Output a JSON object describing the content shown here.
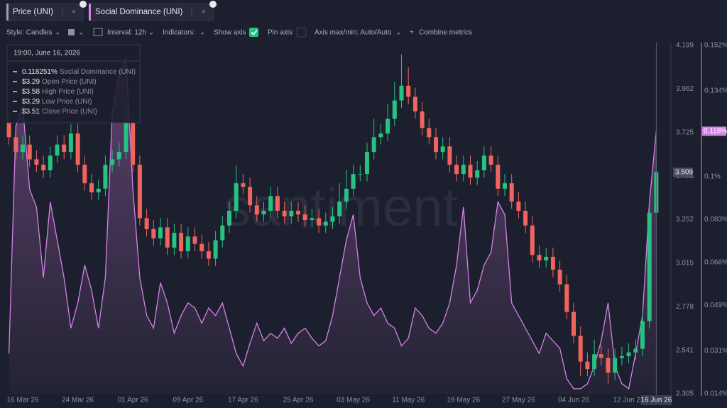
{
  "tabs": [
    {
      "label": "Price (UNI)",
      "color": "#9aa0b0"
    },
    {
      "label": "Social Dominance (UNI)",
      "color": "#d681e6"
    }
  ],
  "toolbar": {
    "style": "Style: Candles",
    "interval": "Interval: 12h",
    "indicators": "Indicators:",
    "show_axis": "Show axis",
    "pin_axis": "Pin axis",
    "axis_minmax": "Axis max/min: Auto/Auto",
    "combine": "Combine metrics"
  },
  "tooltip": {
    "time": "19:00, June 16, 2026",
    "rows": [
      {
        "value": "0.118251%",
        "label": "Social Dominance (UNI)",
        "color": "#d681e6"
      },
      {
        "value": "$3.29",
        "label": "Open Price (UNI)",
        "color": "#9aa0b0"
      },
      {
        "value": "$3.58",
        "label": "High Price (UNI)",
        "color": "#9aa0b0"
      },
      {
        "value": "$3.29",
        "label": "Low Price (UNI)",
        "color": "#9aa0b0"
      },
      {
        "value": "$3.51",
        "label": "Close Price (UNI)",
        "color": "#9aa0b0"
      }
    ]
  },
  "watermark": "santiment",
  "chart_data": {
    "type": "candlestick",
    "grid": false,
    "categories": [
      null,
      null,
      "16 Mar 26",
      null,
      null,
      null,
      null,
      null,
      null,
      null,
      "24 Mar 26",
      null,
      null,
      null,
      null,
      null,
      null,
      null,
      "01 Apr 26",
      null,
      null,
      null,
      null,
      null,
      null,
      null,
      "09 Apr 26",
      null,
      null,
      null,
      null,
      null,
      null,
      null,
      "17 Apr 26",
      null,
      null,
      null,
      null,
      null,
      null,
      null,
      "25 Apr 26",
      null,
      null,
      null,
      null,
      null,
      null,
      null,
      "03 May 26",
      null,
      null,
      null,
      null,
      null,
      null,
      null,
      "11 May 26",
      null,
      null,
      null,
      null,
      null,
      null,
      null,
      "19 May 26",
      null,
      null,
      null,
      null,
      null,
      null,
      null,
      "27 May 26",
      null,
      null,
      null,
      null,
      null,
      null,
      null,
      "04 Jun 26",
      null,
      null,
      null,
      null,
      null,
      null,
      null,
      "12 Jun 26",
      null,
      null,
      null,
      "16 Jun 26"
    ],
    "ylim": [
      2.305,
      4.199
    ],
    "yticks": [
      2.305,
      2.541,
      2.778,
      3.015,
      3.252,
      3.488,
      3.725,
      3.962,
      4.199
    ],
    "y2lim": [
      0.014,
      0.152
    ],
    "y2ticks": [
      {
        "value": 0.014,
        "label": "0.014%"
      },
      {
        "value": 0.031,
        "label": "0.031%"
      },
      {
        "value": 0.049,
        "label": "0.049%"
      },
      {
        "value": 0.066,
        "label": "0.066%"
      },
      {
        "value": 0.083,
        "label": "0.083%"
      },
      {
        "value": 0.1,
        "label": "0.1%"
      },
      {
        "value": 0.134,
        "label": "0.134%"
      },
      {
        "value": 0.152,
        "label": "0.152%"
      }
    ],
    "crosshair": {
      "y": 3.509,
      "y2": {
        "value": 0.118,
        "label": "0.118%"
      }
    },
    "series": [
      {
        "name": "Price (UNI)",
        "type": "candlestick",
        "up_color": "#26c281",
        "down_color": "#f0645e",
        "open": [
          3.78,
          3.7,
          3.62,
          3.66,
          3.58,
          3.55,
          3.52,
          3.6,
          3.66,
          3.62,
          3.72,
          3.55,
          3.45,
          3.4,
          3.42,
          3.55,
          3.58,
          3.62,
          3.78,
          3.55,
          3.26,
          3.2,
          3.15,
          3.21,
          3.1,
          3.18,
          3.08,
          3.16,
          3.12,
          3.08,
          3.04,
          3.14,
          3.22,
          3.3,
          3.45,
          3.43,
          3.33,
          3.28,
          3.3,
          3.38,
          3.3,
          3.27,
          3.3,
          3.28,
          3.25,
          3.26,
          3.22,
          3.24,
          3.27,
          3.35,
          3.42,
          3.5,
          3.5,
          3.62,
          3.7,
          3.72,
          3.8,
          3.9,
          3.98,
          3.92,
          3.84,
          3.75,
          3.7,
          3.62,
          3.65,
          3.55,
          3.5,
          3.55,
          3.48,
          3.52,
          3.6,
          3.55,
          3.42,
          3.45,
          3.35,
          3.3,
          3.22,
          3.06,
          3.03,
          3.05,
          2.98,
          2.9,
          2.75,
          2.62,
          2.48,
          2.44,
          2.52,
          2.5,
          2.42,
          2.5,
          2.51,
          2.53,
          2.55,
          2.7,
          3.29
        ],
        "high": [
          3.83,
          3.75,
          3.71,
          3.71,
          3.63,
          3.6,
          3.65,
          3.71,
          3.71,
          3.77,
          3.77,
          3.6,
          3.5,
          3.47,
          3.6,
          3.63,
          3.67,
          3.88,
          3.83,
          3.6,
          3.31,
          3.25,
          3.26,
          3.26,
          3.23,
          3.23,
          3.21,
          3.21,
          3.17,
          3.13,
          3.19,
          3.27,
          3.35,
          3.55,
          3.5,
          3.48,
          3.38,
          3.35,
          3.43,
          3.43,
          3.35,
          3.35,
          3.35,
          3.33,
          3.31,
          3.31,
          3.29,
          3.32,
          3.45,
          3.52,
          3.55,
          3.55,
          3.67,
          3.8,
          3.77,
          3.88,
          4.0,
          4.15,
          4.08,
          3.97,
          3.89,
          3.8,
          3.75,
          3.7,
          3.7,
          3.6,
          3.6,
          3.6,
          3.57,
          3.65,
          3.65,
          3.6,
          3.5,
          3.5,
          3.4,
          3.35,
          3.27,
          3.11,
          3.1,
          3.1,
          3.03,
          2.95,
          2.8,
          2.67,
          2.53,
          2.6,
          2.57,
          2.55,
          2.55,
          2.56,
          2.58,
          2.6,
          2.75,
          3.34,
          3.58
        ],
        "low": [
          3.66,
          3.58,
          3.58,
          3.54,
          3.51,
          3.48,
          3.48,
          3.56,
          3.58,
          3.58,
          3.51,
          3.41,
          3.36,
          3.36,
          3.38,
          3.51,
          3.54,
          3.58,
          3.51,
          3.22,
          3.16,
          3.11,
          3.11,
          3.06,
          3.06,
          3.04,
          3.04,
          3.08,
          3.04,
          3.0,
          3.0,
          3.1,
          3.18,
          3.26,
          3.39,
          3.29,
          3.24,
          3.24,
          3.26,
          3.26,
          3.23,
          3.23,
          3.24,
          3.21,
          3.21,
          3.18,
          3.18,
          3.2,
          3.23,
          3.31,
          3.38,
          3.46,
          3.46,
          3.58,
          3.66,
          3.68,
          3.76,
          3.86,
          3.88,
          3.8,
          3.71,
          3.66,
          3.58,
          3.58,
          3.51,
          3.46,
          3.46,
          3.44,
          3.44,
          3.48,
          3.51,
          3.38,
          3.38,
          3.31,
          3.26,
          3.18,
          3.02,
          2.99,
          2.99,
          2.94,
          2.86,
          2.71,
          2.58,
          2.4,
          2.4,
          2.4,
          2.46,
          2.36,
          2.38,
          2.46,
          2.47,
          2.49,
          2.51,
          2.66,
          3.29
        ],
        "close": [
          3.7,
          3.62,
          3.66,
          3.58,
          3.55,
          3.52,
          3.6,
          3.66,
          3.62,
          3.72,
          3.55,
          3.45,
          3.4,
          3.42,
          3.55,
          3.58,
          3.62,
          3.78,
          3.55,
          3.26,
          3.2,
          3.15,
          3.21,
          3.1,
          3.18,
          3.08,
          3.16,
          3.12,
          3.08,
          3.04,
          3.14,
          3.22,
          3.3,
          3.45,
          3.43,
          3.33,
          3.28,
          3.3,
          3.38,
          3.3,
          3.27,
          3.3,
          3.28,
          3.25,
          3.26,
          3.22,
          3.24,
          3.27,
          3.35,
          3.42,
          3.5,
          3.5,
          3.62,
          3.7,
          3.72,
          3.8,
          3.9,
          3.98,
          3.92,
          3.84,
          3.75,
          3.7,
          3.62,
          3.65,
          3.55,
          3.5,
          3.55,
          3.48,
          3.52,
          3.6,
          3.55,
          3.42,
          3.45,
          3.35,
          3.3,
          3.22,
          3.06,
          3.03,
          3.05,
          2.98,
          2.9,
          2.75,
          2.62,
          2.48,
          2.44,
          2.52,
          2.5,
          2.42,
          2.5,
          2.51,
          2.53,
          2.55,
          2.7,
          3.29,
          3.51
        ]
      },
      {
        "name": "Social Dominance (UNI)",
        "type": "area",
        "axis": "y2",
        "color": "#d681e6",
        "values": [
          0.03,
          0.12,
          0.128,
          0.095,
          0.088,
          0.06,
          0.09,
          0.075,
          0.06,
          0.04,
          0.05,
          0.065,
          0.055,
          0.04,
          0.06,
          0.125,
          0.14,
          0.147,
          0.095,
          0.06,
          0.045,
          0.04,
          0.058,
          0.05,
          0.038,
          0.045,
          0.05,
          0.048,
          0.042,
          0.048,
          0.045,
          0.05,
          0.04,
          0.03,
          0.025,
          0.034,
          0.042,
          0.035,
          0.038,
          0.036,
          0.04,
          0.034,
          0.038,
          0.04,
          0.036,
          0.033,
          0.035,
          0.045,
          0.06,
          0.075,
          0.085,
          0.06,
          0.05,
          0.045,
          0.048,
          0.042,
          0.04,
          0.033,
          0.036,
          0.048,
          0.045,
          0.04,
          0.038,
          0.042,
          0.05,
          0.065,
          0.088,
          0.05,
          0.055,
          0.065,
          0.07,
          0.09,
          0.085,
          0.05,
          0.045,
          0.04,
          0.035,
          0.03,
          0.038,
          0.035,
          0.032,
          0.02,
          0.016,
          0.016,
          0.018,
          0.025,
          0.035,
          0.05,
          0.025,
          0.018,
          0.016,
          0.03,
          0.045,
          0.09,
          0.118
        ]
      }
    ]
  }
}
